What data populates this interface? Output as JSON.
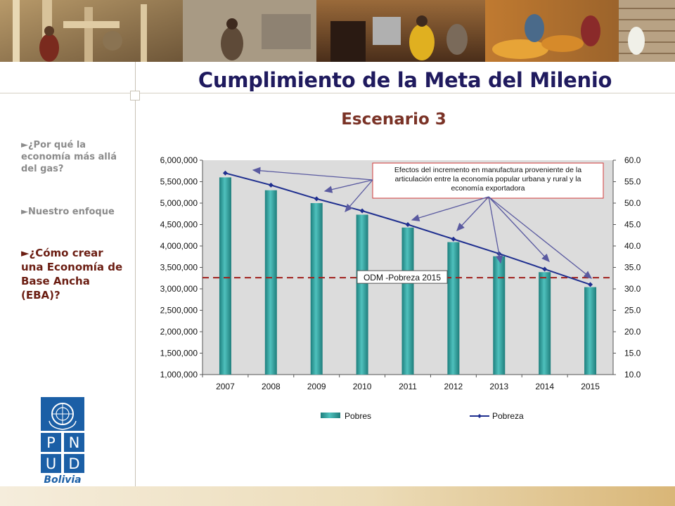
{
  "header": {
    "title": "Cumplimiento de la Meta del Milenio",
    "subtitle": "Escenario 3"
  },
  "sidebar": {
    "items": [
      {
        "label": "►¿Por qué la economía más allá del gas?",
        "active": false
      },
      {
        "label": "►Nuestro enfoque",
        "active": false
      },
      {
        "label": "►¿Cómo crear una Economía de Base Ancha (EBA)?",
        "active": true
      }
    ]
  },
  "logo": {
    "letters": [
      "P",
      "N",
      "U",
      "D"
    ],
    "caption": "Bolivia",
    "color": "#1b5fa6"
  },
  "chart_data": {
    "type": "bar",
    "categories": [
      "2007",
      "2008",
      "2009",
      "2010",
      "2011",
      "2012",
      "2013",
      "2014",
      "2015"
    ],
    "series": [
      {
        "name": "Pobres",
        "type": "bar",
        "axis": "left",
        "values": [
          5600000,
          5300000,
          5000000,
          4730000,
          4430000,
          4090000,
          3760000,
          3390000,
          3040000
        ],
        "color": "#2f9c9a"
      },
      {
        "name": "Pobreza",
        "type": "line",
        "axis": "right",
        "values": [
          57.0,
          54.2,
          51.0,
          48.2,
          45.0,
          41.6,
          38.2,
          34.6,
          31.0
        ],
        "color": "#1f2f8f"
      }
    ],
    "y_left": {
      "min": 1000000,
      "max": 6000000,
      "step": 500000,
      "ticks": [
        "1,000,000",
        "1,500,000",
        "2,000,000",
        "2,500,000",
        "3,000,000",
        "3,500,000",
        "4,000,000",
        "4,500,000",
        "5,000,000",
        "5,500,000",
        "6,000,000"
      ]
    },
    "y_right": {
      "min": 10,
      "max": 60,
      "step": 5,
      "ticks": [
        "10.0",
        "15.0",
        "20.0",
        "25.0",
        "30.0",
        "35.0",
        "40.0",
        "45.0",
        "50.0",
        "55.0",
        "60.0"
      ]
    },
    "reference_line": {
      "label": "ODM -Pobreza 2015",
      "value": 32.6,
      "axis": "right",
      "color": "#a0201c"
    },
    "annotation": {
      "text": [
        "Efectos del incremento en manufactura proveniente de la",
        "articulación entre la economía popular urbana y rural y la",
        "economía exportadora"
      ],
      "color": "#d23a3a"
    },
    "legend": {
      "position": "bottom"
    },
    "grid": false,
    "plot_background": "#dcdcdc"
  }
}
